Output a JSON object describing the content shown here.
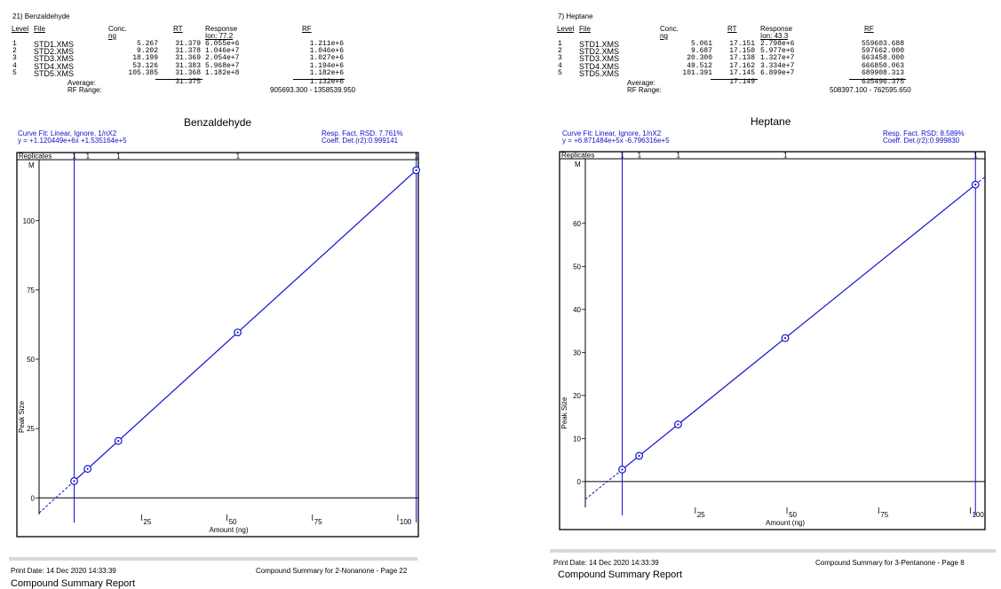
{
  "left": {
    "compound_header": "21)   Benzaldehyde",
    "col_level": "Level",
    "col_file": "File",
    "col_conc": "Conc.",
    "col_conc_unit": "ng",
    "col_rt": "RT",
    "col_response": "Response",
    "col_ion": "Ion: 77.2",
    "col_rf": "RF",
    "rows": [
      {
        "level": "1",
        "file": "STD1.XMS",
        "conc": "5.267",
        "rt": "31.379",
        "response": "6.055e+6",
        "rf": "1.211e+6"
      },
      {
        "level": "2",
        "file": "STD2.XMS",
        "conc": "9.202",
        "rt": "31.378",
        "response": "1.046e+7",
        "rf": "1.046e+6"
      },
      {
        "level": "3",
        "file": "STD3.XMS",
        "conc": "18.199",
        "rt": "31.369",
        "response": "2.054e+7",
        "rf": "1.027e+6"
      },
      {
        "level": "4",
        "file": "STD4.XMS",
        "conc": "53.126",
        "rt": "31.383",
        "response": "5.968e+7",
        "rf": "1.194e+6"
      },
      {
        "level": "5",
        "file": "STD5.XMS",
        "conc": "105.385",
        "rt": "31.368",
        "response": "1.182e+8",
        "rf": "1.182e+6"
      }
    ],
    "average_label": "Average:",
    "average_rt": "31.375",
    "average_rf": "1.132e+6",
    "rf_range_label": "RF Range:",
    "rf_range": "905693.300 - 1358539.950",
    "fit_line1": "Curve Fit: Linear,   Ignore,   1/nX2",
    "fit_line2": "y =    +1.120449e+6x   +1.535164e+5",
    "rsd": "Resp. Fact. RSD:  7.761%",
    "coeff": "Coeff. Det.(r2):0.999141",
    "print_date": "Print Date:  14 Dec 2020 14:33:39",
    "page_info": "Compound Summary for 2-Nonanone - Page 22",
    "report_title": "Compound Summary Report"
  },
  "right": {
    "compound_header": "7)    Heptane",
    "col_level": "Level",
    "col_file": "File",
    "col_conc": "Conc.",
    "col_conc_unit": "ng",
    "col_rt": "RT",
    "col_response": "Response",
    "col_ion": "Ion: 43.3",
    "col_rf": "RF",
    "rows": [
      {
        "level": "1",
        "file": "STD1.XMS",
        "conc": "5.061",
        "rt": "17.151",
        "response": "2.798e+6",
        "rf": "559603.688"
      },
      {
        "level": "2",
        "file": "STD2.XMS",
        "conc": "9.687",
        "rt": "17.150",
        "response": "5.977e+6",
        "rf": "597662.000"
      },
      {
        "level": "3",
        "file": "STD3.XMS",
        "conc": "20.300",
        "rt": "17.138",
        "response": "1.327e+7",
        "rf": "663458.000"
      },
      {
        "level": "4",
        "file": "STD4.XMS",
        "conc": "49.512",
        "rt": "17.162",
        "response": "3.334e+7",
        "rf": "666850.063"
      },
      {
        "level": "5",
        "file": "STD5.XMS",
        "conc": "101.391",
        "rt": "17.145",
        "response": "6.899e+7",
        "rf": "689908.313"
      }
    ],
    "average_label": "Average:",
    "average_rt": "17.149",
    "average_rf": "635496.375",
    "rf_range_label": "RF Range:",
    "rf_range": "508397.100 - 762595.650",
    "fit_line1": "Curve Fit: Linear,   Ignore,   1/nX2",
    "fit_line2": "y =    +6.871484e+5x   -6.796316e+5",
    "rsd": "Resp. Fact. RSD:  8.589%",
    "coeff": "Coeff. Det.(r2):0.999830",
    "print_date": "Print Date:  14 Dec 2020 14:33:39",
    "page_info": "Compound Summary for 3-Pentanone - Page 8",
    "report_title": "Compound Summary Report"
  },
  "colors": {
    "curve": "#1010d0",
    "axis": "#000000",
    "separator": "#d8d8d8"
  },
  "chart_data": [
    {
      "type": "scatter",
      "title": "Benzaldehyde",
      "xlabel": "Amount (ng)",
      "ylabel": "Peak Size",
      "replicates_label": "Replicates",
      "replicates": [
        "1",
        "1",
        "1",
        "1",
        "1"
      ],
      "y_marker": "M",
      "xlim": [
        -5,
        106
      ],
      "ylim": [
        -6,
        122
      ],
      "x_ticks": [
        25,
        50,
        75,
        100
      ],
      "x_tick_labels": [
        "25",
        "50",
        "75",
        "100"
      ],
      "y_ticks": [
        0,
        25,
        50,
        75,
        100
      ],
      "y_tick_labels": [
        "0",
        "25",
        "50",
        "75",
        "100"
      ],
      "points": [
        [
          5.267,
          6.055
        ],
        [
          9.202,
          10.46
        ],
        [
          18.199,
          20.54
        ],
        [
          53.126,
          59.68
        ],
        [
          105.385,
          118.2
        ]
      ],
      "fit": {
        "slope": 1.120449,
        "intercept": 0.1535164
      },
      "vertical_lines": [
        5.267,
        105.385
      ],
      "grid": false
    },
    {
      "type": "scatter",
      "title": "Heptane",
      "xlabel": "Amount (ng)",
      "ylabel": "Peak Size",
      "replicates_label": "Replicates",
      "replicates": [
        "1",
        "1",
        "1",
        "1",
        "1"
      ],
      "y_marker": "M",
      "xlim": [
        -5,
        104
      ],
      "ylim": [
        -6,
        75
      ],
      "x_ticks": [
        25,
        50,
        75,
        100
      ],
      "x_tick_labels": [
        "25",
        "50",
        "75",
        "100"
      ],
      "y_ticks": [
        0,
        10,
        20,
        30,
        40,
        50,
        60
      ],
      "y_tick_labels": [
        "0",
        "10",
        "20",
        "30",
        "40",
        "50",
        "60"
      ],
      "points": [
        [
          5.061,
          2.798
        ],
        [
          9.687,
          5.977
        ],
        [
          20.3,
          13.27
        ],
        [
          49.512,
          33.34
        ],
        [
          101.391,
          68.99
        ]
      ],
      "fit": {
        "slope": 0.6871484,
        "intercept": -0.6796316
      },
      "vertical_lines": [
        5.061,
        101.391
      ],
      "grid": false
    }
  ]
}
